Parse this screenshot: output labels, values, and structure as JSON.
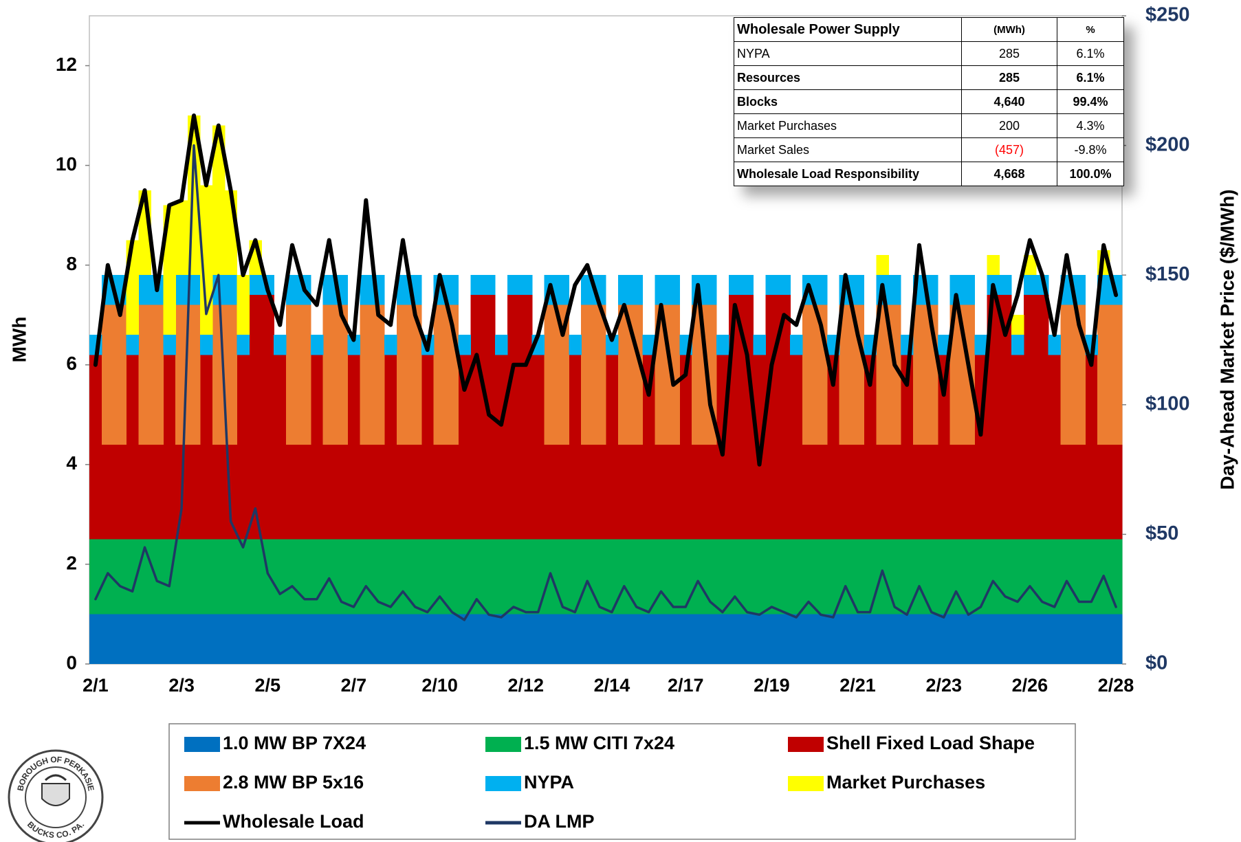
{
  "chart_data": {
    "type": "combo",
    "ylabel": "MWh",
    "y2label": "Day-Ahead Market Price ($/MWh)",
    "categories": [
      "2/1",
      null,
      null,
      null,
      null,
      null,
      null,
      "2/3",
      null,
      null,
      null,
      null,
      null,
      null,
      "2/5",
      null,
      null,
      null,
      null,
      null,
      null,
      "2/7",
      null,
      null,
      null,
      null,
      null,
      null,
      "2/10",
      null,
      null,
      null,
      null,
      null,
      null,
      "2/12",
      null,
      null,
      null,
      null,
      null,
      null,
      "2/14",
      null,
      null,
      null,
      null,
      null,
      "2/17",
      null,
      null,
      null,
      null,
      null,
      null,
      "2/19",
      null,
      null,
      null,
      null,
      null,
      null,
      "2/21",
      null,
      null,
      null,
      null,
      null,
      null,
      "2/23",
      null,
      null,
      null,
      null,
      null,
      null,
      "2/26",
      null,
      null,
      null,
      null,
      null,
      null,
      "2/28"
    ],
    "ylim": [
      0,
      13
    ],
    "yticks": [
      0,
      2,
      4,
      6,
      8,
      10,
      12
    ],
    "y2lim": [
      0,
      250
    ],
    "y2ticks": [
      {
        "value": 0,
        "label": "$0"
      },
      {
        "value": 50,
        "label": "$50"
      },
      {
        "value": 100,
        "label": "$100"
      },
      {
        "value": 150,
        "label": "$150"
      },
      {
        "value": 200,
        "label": "$200"
      },
      {
        "value": 250,
        "label": "$250"
      }
    ],
    "legend": "bottom",
    "series": [
      {
        "name": "1.0 MW BP 7X24",
        "type": "area",
        "color": "#0070c0",
        "values": [
          1,
          1,
          1,
          1,
          1,
          1,
          1,
          1,
          1,
          1,
          1,
          1,
          1,
          1,
          1,
          1,
          1,
          1,
          1,
          1,
          1,
          1,
          1,
          1,
          1,
          1,
          1,
          1,
          1,
          1,
          1,
          1,
          1,
          1,
          1,
          1,
          1,
          1,
          1,
          1,
          1,
          1,
          1,
          1,
          1,
          1,
          1,
          1,
          1,
          1,
          1,
          1,
          1,
          1,
          1,
          1,
          1,
          1,
          1,
          1,
          1,
          1,
          1,
          1,
          1,
          1,
          1,
          1,
          1,
          1,
          1,
          1,
          1,
          1,
          1,
          1,
          1,
          1,
          1,
          1,
          1,
          1,
          1,
          1
        ]
      },
      {
        "name": "1.5 MW CITI 7x24",
        "type": "area",
        "color": "#00b050",
        "values": [
          1.5,
          1.5,
          1.5,
          1.5,
          1.5,
          1.5,
          1.5,
          1.5,
          1.5,
          1.5,
          1.5,
          1.5,
          1.5,
          1.5,
          1.5,
          1.5,
          1.5,
          1.5,
          1.5,
          1.5,
          1.5,
          1.5,
          1.5,
          1.5,
          1.5,
          1.5,
          1.5,
          1.5,
          1.5,
          1.5,
          1.5,
          1.5,
          1.5,
          1.5,
          1.5,
          1.5,
          1.5,
          1.5,
          1.5,
          1.5,
          1.5,
          1.5,
          1.5,
          1.5,
          1.5,
          1.5,
          1.5,
          1.5,
          1.5,
          1.5,
          1.5,
          1.5,
          1.5,
          1.5,
          1.5,
          1.5,
          1.5,
          1.5,
          1.5,
          1.5,
          1.5,
          1.5,
          1.5,
          1.5,
          1.5,
          1.5,
          1.5,
          1.5,
          1.5,
          1.5,
          1.5,
          1.5,
          1.5,
          1.5,
          1.5,
          1.5,
          1.5,
          1.5,
          1.5,
          1.5,
          1.5,
          1.5,
          1.5,
          1.5
        ]
      },
      {
        "name": "Shell Fixed Load Shape",
        "type": "area",
        "color": "#c00000",
        "values": [
          3.7,
          1.9,
          1.9,
          3.7,
          1.9,
          1.9,
          3.7,
          1.9,
          1.9,
          3.7,
          1.9,
          1.9,
          3.7,
          4.9,
          4.9,
          3.7,
          1.9,
          1.9,
          3.7,
          1.9,
          1.9,
          3.7,
          1.9,
          1.9,
          3.7,
          1.9,
          1.9,
          3.7,
          1.9,
          1.9,
          3.7,
          4.9,
          4.9,
          3.7,
          4.9,
          4.9,
          3.7,
          1.9,
          1.9,
          3.7,
          1.9,
          1.9,
          3.7,
          1.9,
          1.9,
          3.7,
          1.9,
          1.9,
          3.7,
          1.9,
          1.9,
          3.7,
          4.9,
          4.9,
          3.7,
          4.9,
          4.9,
          3.7,
          1.9,
          1.9,
          3.7,
          1.9,
          1.9,
          3.7,
          1.9,
          1.9,
          3.7,
          1.9,
          1.9,
          3.7,
          1.9,
          1.9,
          3.7,
          4.9,
          4.9,
          3.7,
          4.9,
          4.9,
          3.7,
          1.9,
          1.9,
          3.7,
          1.9,
          1.9
        ]
      },
      {
        "name": "2.8 MW BP 5x16",
        "type": "area",
        "color": "#ed7d31",
        "values": [
          0,
          2.8,
          2.8,
          0,
          2.8,
          2.8,
          0,
          2.8,
          2.8,
          0,
          2.8,
          2.8,
          0,
          0,
          0,
          0,
          2.8,
          2.8,
          0,
          2.8,
          2.8,
          0,
          2.8,
          2.8,
          0,
          2.8,
          2.8,
          0,
          2.8,
          2.8,
          0,
          0,
          0,
          0,
          0,
          0,
          0,
          2.8,
          2.8,
          0,
          2.8,
          2.8,
          0,
          2.8,
          2.8,
          0,
          2.8,
          2.8,
          0,
          2.8,
          2.8,
          0,
          0,
          0,
          0,
          0,
          0,
          0,
          2.8,
          2.8,
          0,
          2.8,
          2.8,
          0,
          2.8,
          2.8,
          0,
          2.8,
          2.8,
          0,
          2.8,
          2.8,
          0,
          0,
          0,
          0,
          0,
          0,
          0,
          2.8,
          2.8,
          0,
          2.8,
          2.8
        ]
      },
      {
        "name": "NYPA",
        "type": "area",
        "color": "#00b0f0",
        "values": [
          0.4,
          0.6,
          0.6,
          0.4,
          0.6,
          0.6,
          0.4,
          0.6,
          0.6,
          0.4,
          0.6,
          0.6,
          0.4,
          0.4,
          0.4,
          0.4,
          0.6,
          0.6,
          0.4,
          0.6,
          0.6,
          0.4,
          0.6,
          0.6,
          0.4,
          0.6,
          0.6,
          0.4,
          0.6,
          0.6,
          0.4,
          0.4,
          0.4,
          0.4,
          0.4,
          0.4,
          0.4,
          0.6,
          0.6,
          0.4,
          0.6,
          0.6,
          0.4,
          0.6,
          0.6,
          0.4,
          0.6,
          0.6,
          0.4,
          0.6,
          0.6,
          0.4,
          0.4,
          0.4,
          0.4,
          0.4,
          0.4,
          0.4,
          0.6,
          0.6,
          0.4,
          0.6,
          0.6,
          0.4,
          0.6,
          0.6,
          0.4,
          0.6,
          0.6,
          0.4,
          0.6,
          0.6,
          0.4,
          0.4,
          0.4,
          0.4,
          0.4,
          0.4,
          0.4,
          0.6,
          0.6,
          0.4,
          0.6,
          0.6
        ]
      },
      {
        "name": "Market Purchases",
        "type": "area",
        "color": "#ffff00",
        "values": [
          0,
          0,
          0,
          1.9,
          1.7,
          0,
          2.6,
          1.5,
          3.2,
          3.0,
          3.0,
          1.7,
          1.2,
          0.7,
          0,
          0,
          0,
          0,
          0,
          0,
          0,
          0,
          0,
          0,
          0,
          0,
          0,
          0,
          0,
          0,
          0,
          0,
          0,
          0,
          0,
          0,
          0,
          0,
          0,
          0,
          0,
          0,
          0,
          0,
          0,
          0,
          0,
          0,
          0,
          0,
          0,
          0,
          0,
          0,
          0,
          0,
          0,
          0,
          0,
          0,
          0,
          0,
          0,
          0,
          0.4,
          0,
          0,
          0,
          0,
          0,
          0,
          0,
          0,
          0.4,
          0,
          0.4,
          0.4,
          0,
          0,
          0,
          0,
          0,
          0.5,
          0
        ]
      },
      {
        "name": "Wholesale Load",
        "type": "line",
        "color": "#000000",
        "values": [
          6.0,
          8.0,
          7.0,
          8.5,
          9.5,
          7.5,
          9.2,
          9.3,
          11.0,
          9.6,
          10.8,
          9.5,
          7.8,
          8.5,
          7.5,
          6.8,
          8.4,
          7.5,
          7.2,
          8.5,
          7.0,
          6.5,
          9.3,
          7.0,
          6.8,
          8.5,
          7.0,
          6.3,
          7.8,
          6.8,
          5.5,
          6.2,
          5.0,
          4.8,
          6.0,
          6.0,
          6.6,
          7.6,
          6.6,
          7.6,
          8.0,
          7.2,
          6.5,
          7.2,
          6.3,
          5.4,
          7.2,
          5.6,
          5.8,
          7.6,
          5.2,
          4.2,
          7.2,
          6.2,
          4.0,
          6.0,
          7.0,
          6.8,
          7.6,
          6.8,
          5.6,
          7.8,
          6.6,
          5.6,
          7.6,
          6.0,
          5.6,
          8.4,
          6.8,
          5.4,
          7.4,
          6.0,
          4.6,
          7.6,
          6.6,
          7.4,
          8.5,
          7.8,
          6.6,
          8.2,
          6.8,
          6.0,
          8.4,
          7.4
        ]
      },
      {
        "name": "DA LMP",
        "type": "line",
        "axis": "y2",
        "color": "#1f3864",
        "values": [
          25,
          35,
          30,
          28,
          45,
          32,
          30,
          60,
          200,
          135,
          150,
          55,
          45,
          60,
          35,
          27,
          30,
          25,
          25,
          33,
          24,
          22,
          30,
          24,
          22,
          28,
          22,
          20,
          26,
          20,
          17,
          25,
          19,
          18,
          22,
          20,
          20,
          35,
          22,
          20,
          32,
          22,
          20,
          30,
          22,
          20,
          28,
          22,
          22,
          32,
          24,
          20,
          26,
          20,
          19,
          22,
          20,
          18,
          24,
          19,
          18,
          30,
          20,
          20,
          36,
          22,
          19,
          30,
          20,
          18,
          28,
          19,
          22,
          32,
          26,
          24,
          30,
          24,
          22,
          32,
          24,
          24,
          34,
          22
        ]
      }
    ]
  },
  "table": {
    "header": [
      "Wholesale Power Supply",
      "(MWh)",
      "%"
    ],
    "rows": [
      [
        "NYPA",
        "285",
        "6.1%"
      ],
      [
        "Resources",
        "285",
        "6.1%"
      ],
      [
        "Blocks",
        "4,640",
        "99.4%"
      ],
      [
        "Market Purchases",
        "200",
        "4.3%"
      ],
      [
        "Market Sales",
        "(457)",
        "-9.8%"
      ],
      [
        "Wholesale Load Responsibility",
        "4,668",
        "100.0%"
      ]
    ]
  },
  "logo": {
    "top": "BOROUGH OF PERKASIE",
    "bottom": "BUCKS CO. PA."
  }
}
